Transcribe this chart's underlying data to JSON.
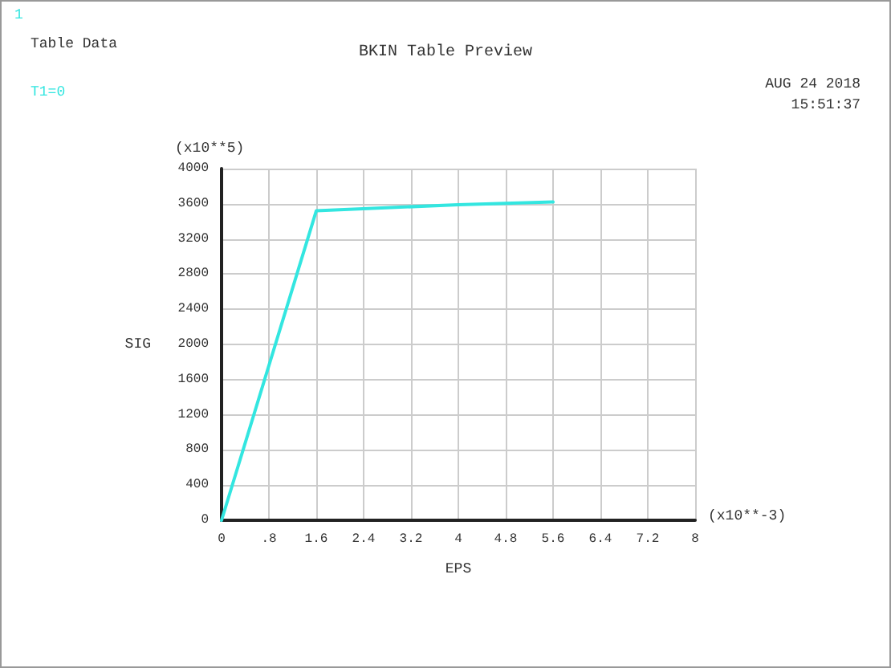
{
  "chart_data": {
    "type": "line",
    "title": "BKIN Table Preview",
    "xlabel": "EPS",
    "ylabel": "SIG",
    "annotations": [
      "1",
      "Table Data",
      "T1=0",
      "AUG 24 2018",
      "15:51:37",
      "(x10**5)",
      "(x10**-3)"
    ],
    "x": [
      0,
      1.6,
      4,
      5.6
    ],
    "series": [
      {
        "color": "#33e6e0",
        "values": [
          0,
          3520,
          3590,
          3620
        ]
      }
    ],
    "xlim": [
      0,
      8
    ],
    "xticks": [
      0,
      {
        "value": 0.8,
        "label": ".8"
      },
      1.6,
      2.4,
      3.2,
      4,
      4.8,
      5.6,
      6.4,
      7.2,
      8
    ],
    "ylim": [
      0,
      4000
    ],
    "yticks": [
      0,
      400,
      800,
      1200,
      1600,
      2000,
      2400,
      2800,
      3200,
      3600,
      4000
    ],
    "grid": true,
    "marker": "none",
    "line_style": "solid"
  }
}
